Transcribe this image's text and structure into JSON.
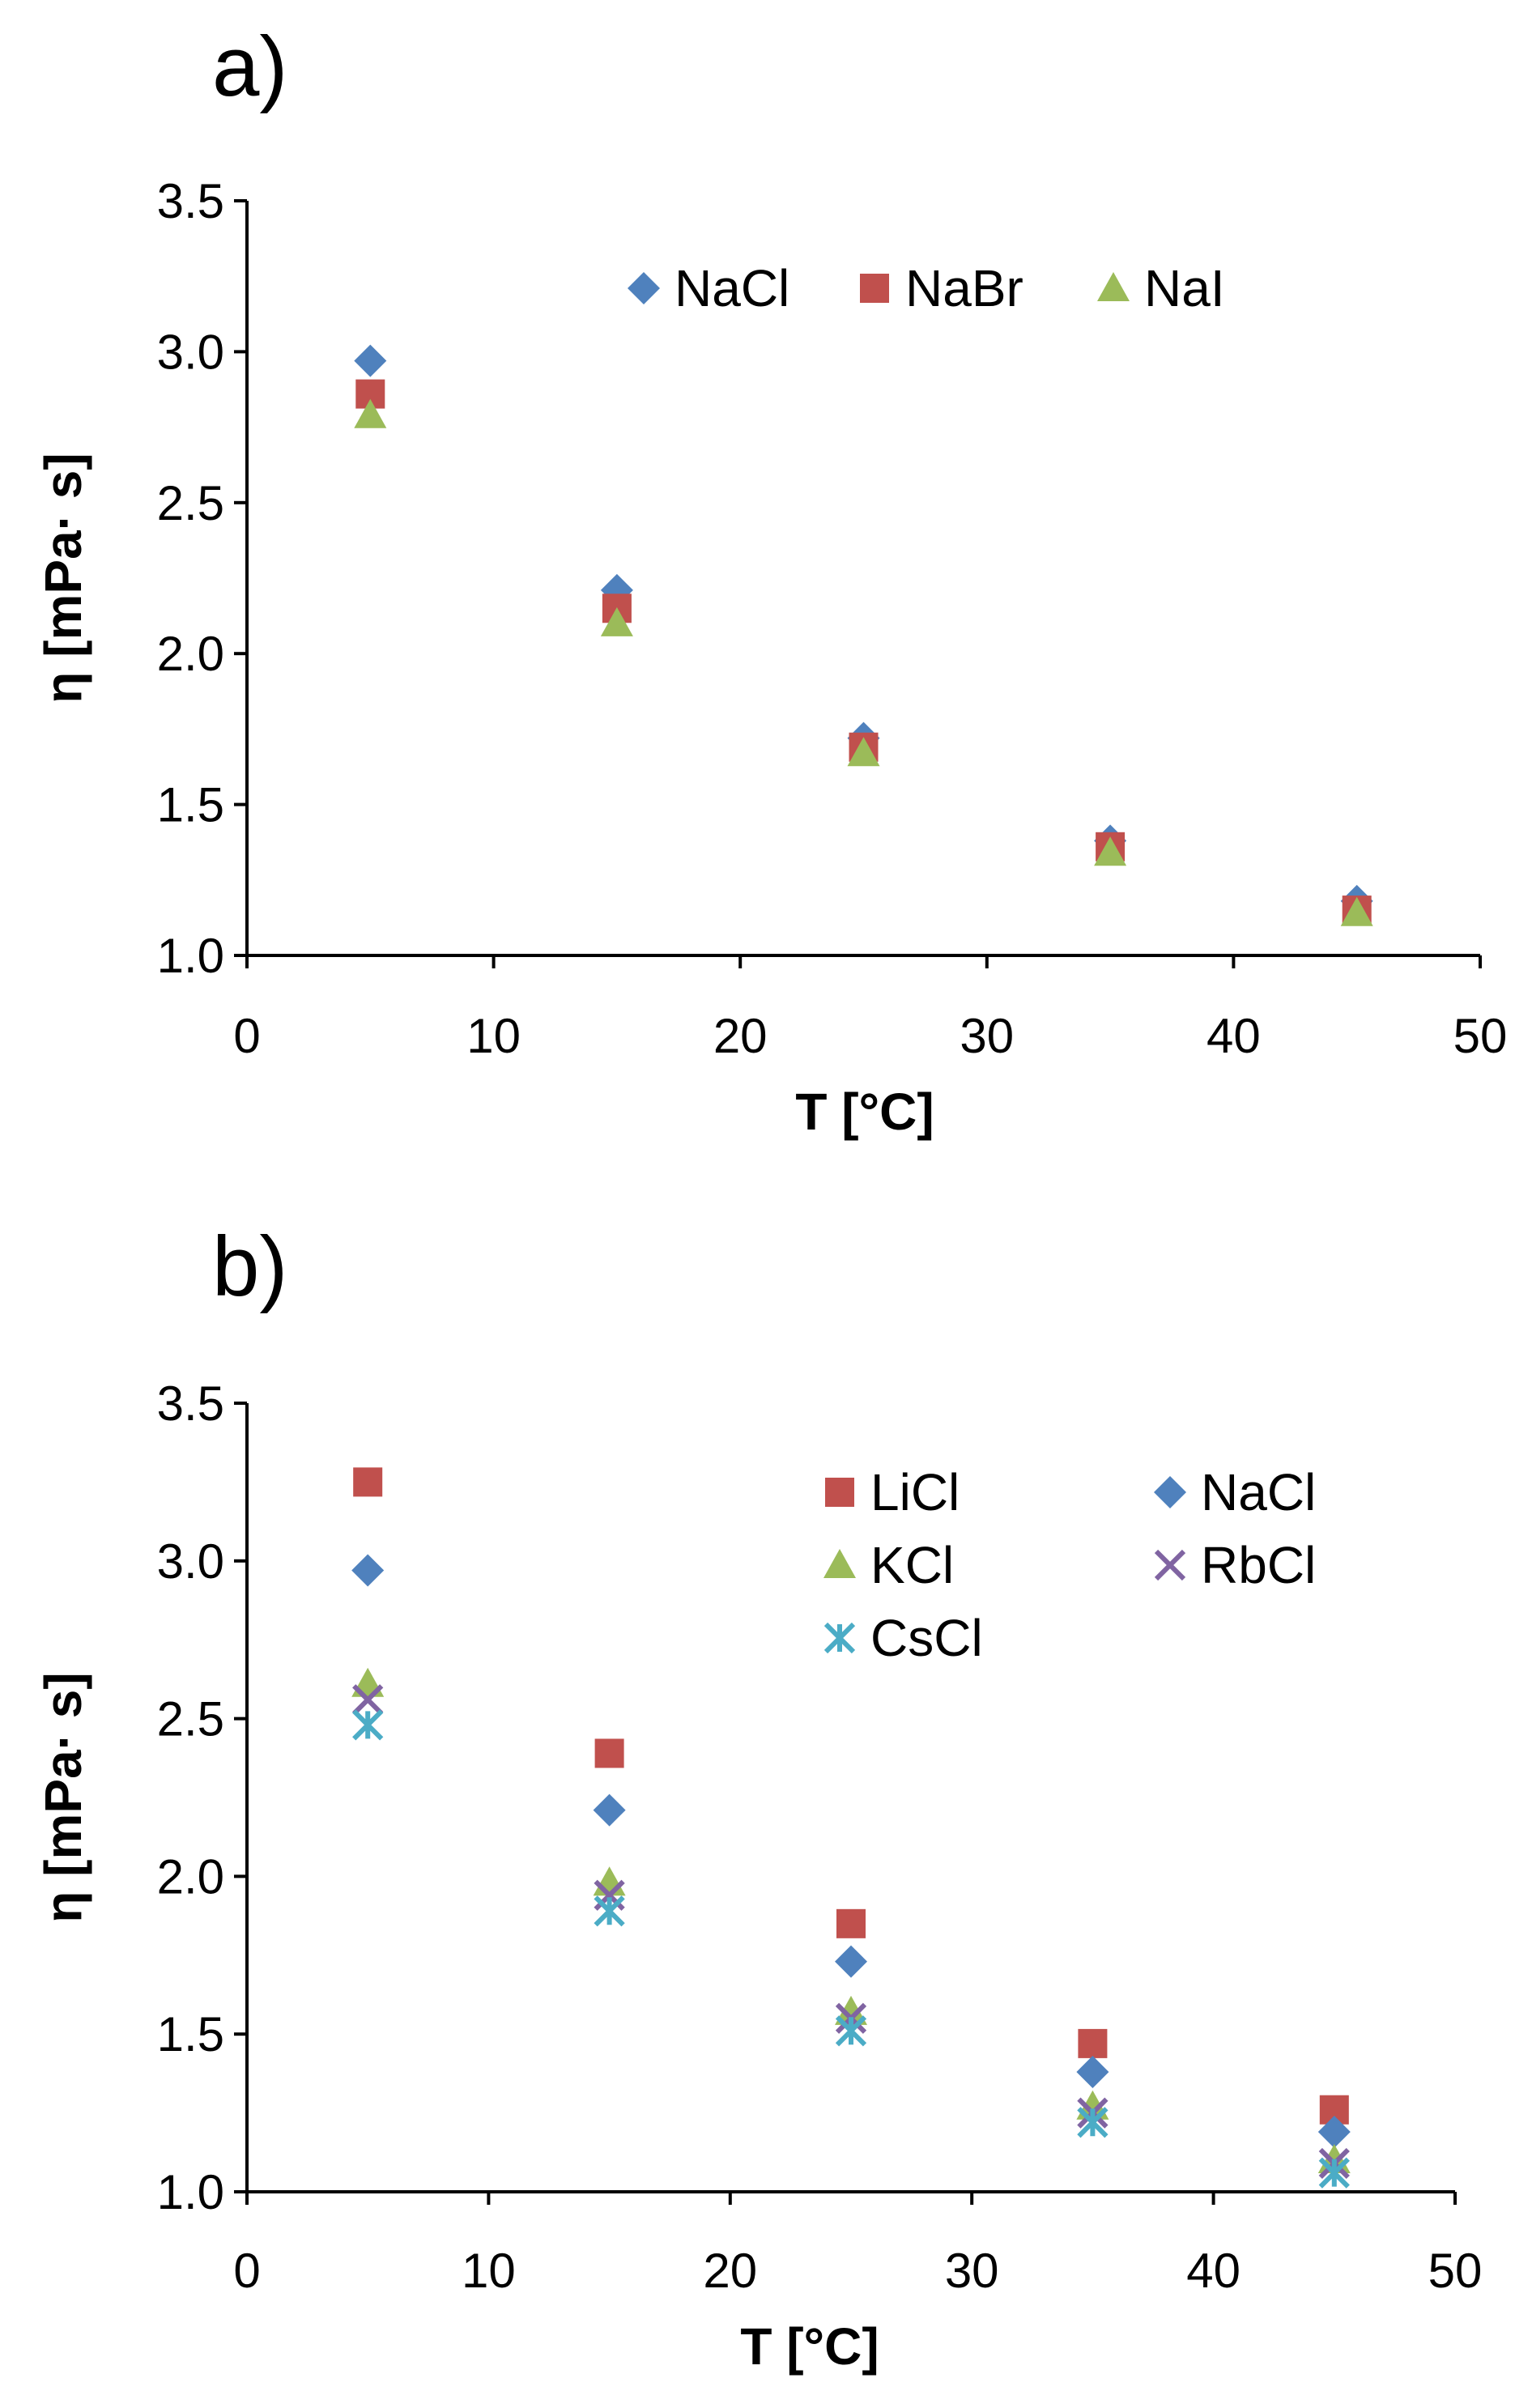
{
  "colors": {
    "blue": "#4f81bd",
    "red": "#c0504d",
    "green": "#9bbb59",
    "purple": "#8064a2",
    "cyan": "#4bacc6"
  },
  "chart_data": [
    {
      "type": "scatter",
      "panel_label": "a)",
      "xlabel": "T [°C]",
      "ylabel": "η [mPa· s]",
      "xlim": [
        0,
        50
      ],
      "ylim": [
        1.0,
        3.5
      ],
      "xticks": [
        "0",
        "10",
        "20",
        "30",
        "40",
        "50"
      ],
      "yticks": [
        "1.0",
        "1.5",
        "2.0",
        "2.5",
        "3.0",
        "3.5"
      ],
      "grid": false,
      "legend_position": "top-right",
      "x": [
        5,
        15,
        25,
        35,
        45
      ],
      "series": [
        {
          "name": "NaCl",
          "marker": "diamond",
          "color": "blue",
          "values": [
            2.97,
            2.21,
            1.72,
            1.38,
            1.18
          ]
        },
        {
          "name": "NaBr",
          "marker": "square",
          "color": "red",
          "values": [
            2.86,
            2.15,
            1.69,
            1.36,
            1.15
          ]
        },
        {
          "name": "NaI",
          "marker": "triangle",
          "color": "green",
          "values": [
            2.79,
            2.1,
            1.67,
            1.34,
            1.14
          ]
        }
      ]
    },
    {
      "type": "scatter",
      "panel_label": "b)",
      "xlabel": "T [°C]",
      "ylabel": "η [mPa· s]",
      "xlim": [
        0,
        50
      ],
      "ylim": [
        1.0,
        3.5
      ],
      "xticks": [
        "0",
        "10",
        "20",
        "30",
        "40",
        "50"
      ],
      "yticks": [
        "1.0",
        "1.5",
        "2.0",
        "2.5",
        "3.0",
        "3.5"
      ],
      "grid": false,
      "legend_position": "top-right",
      "x": [
        5,
        15,
        25,
        35,
        45
      ],
      "series": [
        {
          "name": "LiCl",
          "marker": "square",
          "color": "red",
          "values": [
            3.25,
            2.39,
            1.85,
            1.47,
            1.26
          ]
        },
        {
          "name": "NaCl",
          "marker": "diamond",
          "color": "blue",
          "values": [
            2.97,
            2.21,
            1.73,
            1.38,
            1.19
          ]
        },
        {
          "name": "KCl",
          "marker": "triangle",
          "color": "green",
          "values": [
            2.61,
            1.98,
            1.57,
            1.27,
            1.1
          ]
        },
        {
          "name": "RbCl",
          "marker": "x",
          "color": "purple",
          "values": [
            2.56,
            1.94,
            1.55,
            1.25,
            1.09
          ]
        },
        {
          "name": "CsCl",
          "marker": "star",
          "color": "cyan",
          "values": [
            2.48,
            1.89,
            1.51,
            1.22,
            1.06
          ]
        }
      ]
    }
  ]
}
